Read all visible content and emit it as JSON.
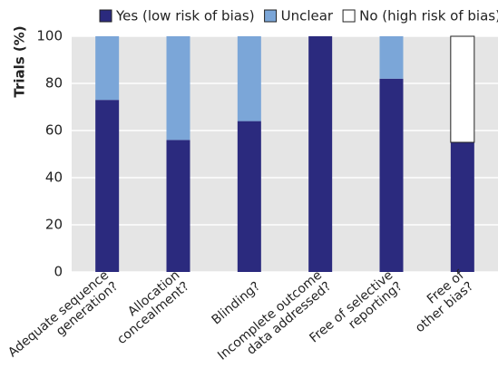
{
  "chart_data": {
    "type": "stacked_bar",
    "ylabel": "Trials (%)",
    "categories": [
      [
        "Adequate sequence",
        "generation?"
      ],
      [
        "Allocation",
        "concealment?"
      ],
      [
        "Blinding?"
      ],
      [
        "Incomplete outcome",
        "data addressed?"
      ],
      [
        "Free of selective",
        "reporting?"
      ],
      [
        "Free of",
        "other bias?"
      ]
    ],
    "series": [
      {
        "name": "Yes (low risk of bias)",
        "color": "#2b2a7e",
        "values": [
          73,
          56,
          64,
          100,
          82,
          55
        ]
      },
      {
        "name": "Unclear",
        "color": "#7ba6d8",
        "values": [
          27,
          44,
          36,
          0,
          18,
          0
        ]
      },
      {
        "name": "No (high risk of bias)",
        "color": "#ffffff",
        "values": [
          0,
          0,
          0,
          0,
          0,
          45
        ]
      }
    ],
    "ylim": [
      0,
      100
    ],
    "yticks": [
      0,
      20,
      40,
      60,
      80,
      100
    ],
    "grid": true
  }
}
